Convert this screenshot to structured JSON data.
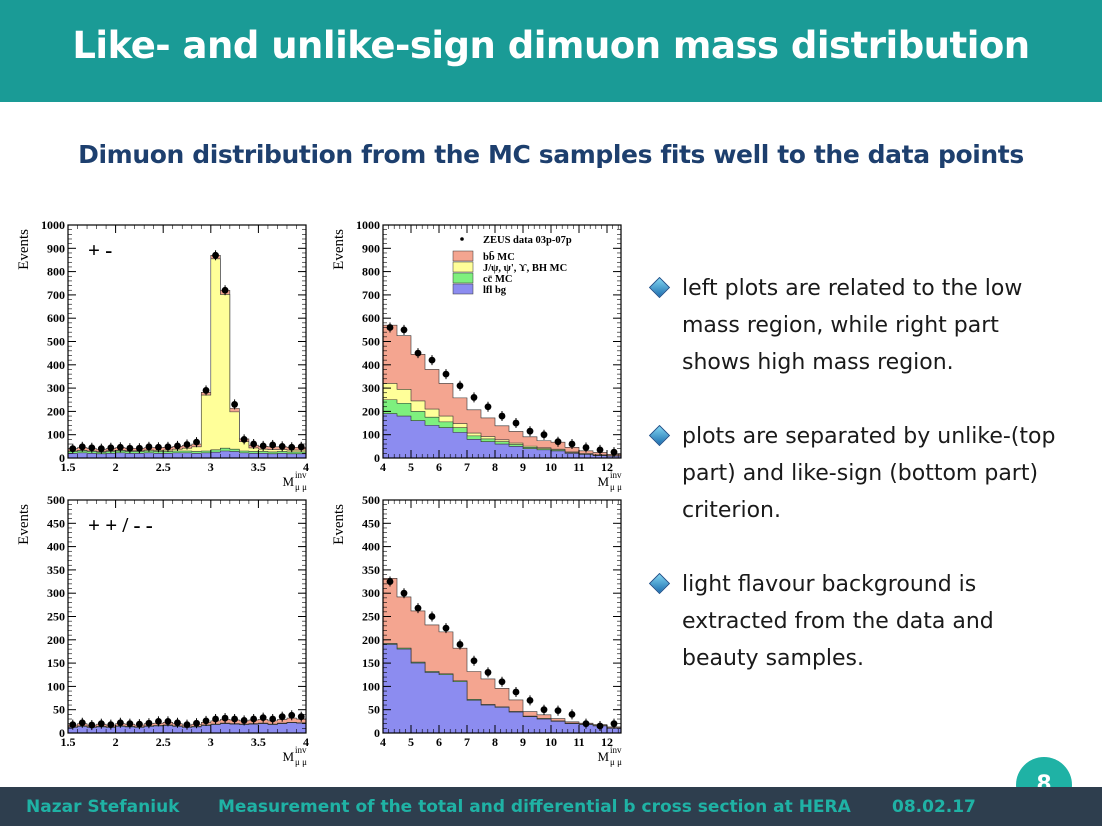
{
  "slide": {
    "title": "Like- and unlike-sign dimuon mass distribution",
    "subtitle": "Dimuon distribution from the MC samples fits well to the data points",
    "page_number": "8"
  },
  "bullets": [
    {
      "text": "left plots are related to the low mass region, while right part shows high mass region."
    },
    {
      "text": "plots are separated by unlike-(top part) and like-sign (bottom part) criterion."
    },
    {
      "text": "light flavour background is extracted from the data and beauty samples."
    }
  ],
  "footer": {
    "author": "Nazar  Stefaniuk",
    "talk_title": "Measurement of the total and differential b cross section at HERA",
    "date": "08.02.17"
  },
  "colors": {
    "header": "#1a9b96",
    "footer": "#2e3e4e",
    "footer_text": "#1fb2a5",
    "bb": "#f4a590",
    "jpsi": "#ffff99",
    "cc": "#7ef07e",
    "lfl": "#8c8cf0"
  },
  "chart_data": [
    {
      "type": "area",
      "label": "+ -",
      "ylabel": "Events",
      "xlabel": "M",
      "xlabel_sup": "inv",
      "xlabel_sub": "μ μ",
      "xlim": [
        1.5,
        4
      ],
      "ylim": [
        0,
        1000
      ],
      "xticks": [
        "1.5",
        "2",
        "2.5",
        "3",
        "3.5",
        "4"
      ],
      "yticks": [
        "0",
        "100",
        "200",
        "300",
        "400",
        "500",
        "600",
        "700",
        "800",
        "900",
        "1000"
      ],
      "x": [
        1.55,
        1.65,
        1.75,
        1.85,
        1.95,
        2.05,
        2.15,
        2.25,
        2.35,
        2.45,
        2.55,
        2.65,
        2.75,
        2.85,
        2.95,
        3.05,
        3.15,
        3.25,
        3.35,
        3.45,
        3.55,
        3.65,
        3.75,
        3.85,
        3.95
      ],
      "series": [
        {
          "key": "lfl",
          "values": [
            20,
            22,
            20,
            18,
            20,
            22,
            20,
            20,
            22,
            20,
            20,
            22,
            22,
            20,
            22,
            25,
            30,
            28,
            22,
            20,
            20,
            18,
            20,
            18,
            18
          ]
        },
        {
          "key": "cc",
          "values": [
            8,
            8,
            8,
            7,
            8,
            8,
            8,
            8,
            8,
            8,
            8,
            8,
            8,
            8,
            8,
            10,
            12,
            10,
            8,
            8,
            8,
            8,
            8,
            8,
            8
          ]
        },
        {
          "key": "jpsi",
          "values": [
            2,
            3,
            2,
            2,
            3,
            3,
            3,
            3,
            4,
            5,
            6,
            8,
            12,
            20,
            240,
            820,
            660,
            160,
            40,
            15,
            10,
            10,
            8,
            8,
            8
          ]
        },
        {
          "key": "bb",
          "values": [
            10,
            12,
            10,
            10,
            10,
            12,
            10,
            10,
            10,
            12,
            12,
            12,
            12,
            12,
            12,
            15,
            18,
            15,
            12,
            12,
            12,
            12,
            12,
            12,
            12
          ]
        }
      ],
      "data_points": [
        40,
        48,
        44,
        40,
        44,
        46,
        42,
        42,
        48,
        46,
        48,
        52,
        58,
        68,
        290,
        870,
        720,
        230,
        80,
        60,
        52,
        56,
        50,
        46,
        48
      ]
    },
    {
      "type": "area",
      "ylabel": "Events",
      "xlabel": "M",
      "xlabel_sup": "inv",
      "xlabel_sub": "μ μ",
      "xlim": [
        4,
        12.5
      ],
      "ylim": [
        0,
        1000
      ],
      "xticks": [
        "4",
        "5",
        "6",
        "7",
        "8",
        "9",
        "10",
        "11",
        "12"
      ],
      "yticks": [
        "0",
        "100",
        "200",
        "300",
        "400",
        "500",
        "600",
        "700",
        "800",
        "900",
        "1000"
      ],
      "legend": [
        {
          "key": "data",
          "text": "ZEUS data 03p-07p"
        },
        {
          "key": "bb",
          "text": "bb̄ MC"
        },
        {
          "key": "jpsi",
          "text": "J/ψ, ψ', ϒ, BH MC"
        },
        {
          "key": "cc",
          "text": "cc̄ MC"
        },
        {
          "key": "lfl",
          "text": "lfl bg"
        }
      ],
      "x": [
        4.25,
        4.75,
        5.25,
        5.75,
        6.25,
        6.75,
        7.25,
        7.75,
        8.25,
        8.75,
        9.25,
        9.75,
        10.25,
        10.75,
        11.25,
        11.75,
        12.25
      ],
      "series": [
        {
          "key": "lfl",
          "values": [
            190,
            180,
            160,
            140,
            130,
            110,
            80,
            70,
            60,
            50,
            40,
            35,
            30,
            20,
            15,
            10,
            8
          ]
        },
        {
          "key": "cc",
          "values": [
            60,
            55,
            40,
            35,
            25,
            20,
            15,
            12,
            10,
            8,
            6,
            5,
            4,
            3,
            2,
            2,
            1
          ]
        },
        {
          "key": "jpsi",
          "values": [
            70,
            60,
            45,
            35,
            25,
            18,
            12,
            10,
            8,
            6,
            5,
            4,
            4,
            3,
            2,
            2,
            1
          ]
        },
        {
          "key": "bb",
          "values": [
            250,
            230,
            200,
            170,
            140,
            110,
            100,
            80,
            60,
            50,
            40,
            30,
            30,
            20,
            12,
            10,
            6
          ]
        }
      ],
      "data_points": [
        560,
        550,
        450,
        420,
        360,
        310,
        260,
        220,
        180,
        150,
        115,
        100,
        70,
        60,
        45,
        35,
        25
      ]
    },
    {
      "type": "area",
      "label": "+ + / - -",
      "ylabel": "Events",
      "xlabel": "M",
      "xlabel_sup": "inv",
      "xlabel_sub": "μ μ",
      "xlim": [
        1.5,
        4
      ],
      "ylim": [
        0,
        500
      ],
      "xticks": [
        "1.5",
        "2",
        "2.5",
        "3",
        "3.5",
        "4"
      ],
      "yticks": [
        "0",
        "50",
        "100",
        "150",
        "200",
        "250",
        "300",
        "350",
        "400",
        "450",
        "500"
      ],
      "x": [
        1.55,
        1.65,
        1.75,
        1.85,
        1.95,
        2.05,
        2.15,
        2.25,
        2.35,
        2.45,
        2.55,
        2.65,
        2.75,
        2.85,
        2.95,
        3.05,
        3.15,
        3.25,
        3.35,
        3.45,
        3.55,
        3.65,
        3.75,
        3.85,
        3.95
      ],
      "series": [
        {
          "key": "lfl",
          "values": [
            12,
            14,
            12,
            13,
            12,
            14,
            13,
            12,
            14,
            15,
            16,
            14,
            12,
            13,
            16,
            18,
            20,
            19,
            18,
            19,
            20,
            18,
            20,
            22,
            21
          ]
        },
        {
          "key": "cc",
          "values": [
            1,
            1,
            1,
            1,
            1,
            1,
            1,
            1,
            1,
            1,
            1,
            1,
            1,
            1,
            1,
            1,
            1,
            1,
            1,
            1,
            1,
            1,
            1,
            1,
            1
          ]
        },
        {
          "key": "jpsi",
          "values": [
            0,
            0,
            0,
            0,
            0,
            0,
            0,
            0,
            0,
            0,
            0,
            0,
            0,
            0,
            0,
            0,
            0,
            0,
            0,
            0,
            0,
            0,
            0,
            0,
            0
          ]
        },
        {
          "key": "bb",
          "values": [
            4,
            5,
            4,
            5,
            4,
            5,
            5,
            4,
            5,
            5,
            6,
            5,
            4,
            5,
            6,
            7,
            8,
            8,
            7,
            8,
            8,
            7,
            8,
            9,
            8
          ]
        }
      ],
      "data_points": [
        18,
        22,
        17,
        20,
        18,
        22,
        20,
        19,
        21,
        25,
        25,
        22,
        18,
        21,
        26,
        30,
        32,
        30,
        27,
        30,
        33,
        30,
        35,
        38,
        35
      ]
    },
    {
      "type": "area",
      "ylabel": "Events",
      "xlabel": "M",
      "xlabel_sup": "inv",
      "xlabel_sub": "μ μ",
      "xlim": [
        4,
        12.5
      ],
      "ylim": [
        0,
        500
      ],
      "xticks": [
        "4",
        "5",
        "6",
        "7",
        "8",
        "9",
        "10",
        "11",
        "12"
      ],
      "yticks": [
        "0",
        "50",
        "100",
        "150",
        "200",
        "250",
        "300",
        "350",
        "400",
        "450",
        "500"
      ],
      "x": [
        4.25,
        4.75,
        5.25,
        5.75,
        6.25,
        6.75,
        7.25,
        7.75,
        8.25,
        8.75,
        9.25,
        9.75,
        10.25,
        10.75,
        11.25,
        11.75,
        12.25
      ],
      "series": [
        {
          "key": "lfl",
          "values": [
            190,
            180,
            150,
            130,
            125,
            110,
            70,
            60,
            55,
            45,
            35,
            30,
            25,
            20,
            18,
            15,
            10
          ]
        },
        {
          "key": "cc",
          "values": [
            2,
            2,
            2,
            2,
            2,
            2,
            2,
            1,
            1,
            1,
            1,
            1,
            1,
            1,
            1,
            1,
            1
          ]
        },
        {
          "key": "jpsi",
          "values": [
            0,
            0,
            0,
            0,
            0,
            0,
            0,
            0,
            0,
            0,
            0,
            0,
            0,
            0,
            0,
            0,
            0
          ]
        },
        {
          "key": "bb",
          "values": [
            140,
            110,
            110,
            100,
            90,
            70,
            60,
            55,
            40,
            25,
            10,
            8,
            5,
            3,
            2,
            2,
            2
          ]
        }
      ],
      "data_points": [
        325,
        300,
        268,
        250,
        225,
        190,
        155,
        130,
        110,
        88,
        70,
        50,
        48,
        40,
        20,
        15,
        20
      ]
    }
  ]
}
